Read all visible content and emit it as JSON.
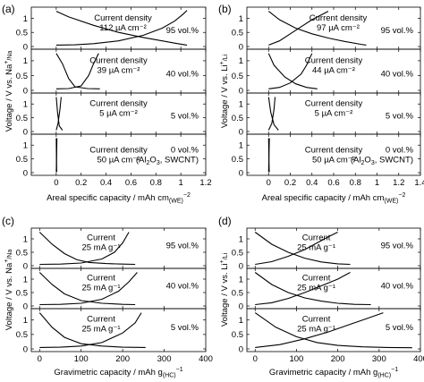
{
  "chart_data": [
    {
      "id": "a",
      "panel_label": "(a)",
      "type": "line",
      "ylabel_parts": [
        "Voltage / V vs. Na",
        "+",
        "/Na"
      ],
      "xlabel_parts": [
        "Areal specific capacity / mAh cm",
        "(WE)",
        "−2"
      ],
      "xlim": [
        -0.2,
        1.2
      ],
      "xticks": [
        0,
        0.2,
        0.4,
        0.6,
        0.8,
        1.0,
        1.2
      ],
      "xtick_labels": [
        "0",
        "0.2",
        "0.4",
        "0.6",
        "0.8",
        "1",
        "1.2"
      ],
      "ylim": [
        0,
        1.3
      ],
      "yticks": [
        0,
        0.5,
        1
      ],
      "ytick_labels": [
        "0",
        "0.5",
        "1"
      ],
      "subplots": [
        {
          "annotation": [
            "Current density",
            "112 µA cm⁻²"
          ],
          "label": "95 vol.%",
          "series": [
            {
              "name": "",
              "x": [
                0,
                0.1,
                0.3,
                0.5,
                0.7,
                0.85,
                0.95,
                1.02,
                1.05
              ],
              "y": [
                1.25,
                1.05,
                0.75,
                0.5,
                0.32,
                0.2,
                0.12,
                0.07,
                0.05
              ]
            },
            {
              "name": "",
              "x": [
                0,
                0.15,
                0.3,
                0.5,
                0.7,
                0.85,
                0.95,
                1.02,
                1.05
              ],
              "y": [
                0.05,
                0.06,
                0.1,
                0.2,
                0.4,
                0.65,
                0.9,
                1.15,
                1.28
              ]
            }
          ]
        },
        {
          "annotation": [
            "Current density",
            "39 µA cm⁻²"
          ],
          "label": "40 vol.%",
          "series": [
            {
              "name": "",
              "x": [
                0,
                0.05,
                0.1,
                0.15,
                0.25,
                0.35
              ],
              "y": [
                1.25,
                0.9,
                0.4,
                0.12,
                0.06,
                0.05
              ]
            },
            {
              "name": "",
              "x": [
                0,
                0.1,
                0.2,
                0.26,
                0.3,
                0.34
              ],
              "y": [
                0.05,
                0.06,
                0.15,
                0.5,
                0.9,
                1.25
              ]
            }
          ]
        },
        {
          "annotation": [
            "Current density",
            "5 µA cm⁻²"
          ],
          "label": "5 vol.%",
          "series": [
            {
              "name": "",
              "x": [
                0,
                0.01,
                0.025,
                0.05
              ],
              "y": [
                1.25,
                0.7,
                0.2,
                0.05
              ]
            },
            {
              "name": "",
              "x": [
                0,
                0.015,
                0.03,
                0.04
              ],
              "y": [
                0.05,
                0.3,
                0.8,
                1.25
              ]
            }
          ]
        },
        {
          "annotation": [
            "Current density",
            "50 µA cm⁻²"
          ],
          "label": "0 vol.%",
          "label_extra": [
            "(Al",
            "2",
            "O",
            "3",
            ", SWCNT)"
          ],
          "series": [
            {
              "name": "",
              "x": [
                0,
                0.002,
                0.004
              ],
              "y": [
                1.25,
                0.5,
                0.02
              ]
            },
            {
              "name": "",
              "x": [
                0,
                0.003,
                0.005
              ],
              "y": [
                0.02,
                0.6,
                1.25
              ]
            }
          ]
        }
      ]
    },
    {
      "id": "b",
      "panel_label": "(b)",
      "type": "line",
      "ylabel_parts": [
        "Voltage / V vs. Li",
        "+",
        "/Li"
      ],
      "xlabel_parts": [
        "Areal specific capacity / mAh cm",
        "(WE)",
        "−2"
      ],
      "xlim": [
        -0.2,
        1.4
      ],
      "xticks": [
        0,
        0.2,
        0.4,
        0.6,
        0.8,
        1.0,
        1.2,
        1.4
      ],
      "xtick_labels": [
        "0",
        "0.2",
        "0.4",
        "0.6",
        "0.8",
        "1",
        "1.2",
        "1.4"
      ],
      "ylim": [
        0,
        1.3
      ],
      "yticks": [
        0,
        0.5,
        1
      ],
      "ytick_labels": [
        "0",
        "0.5",
        "1"
      ],
      "subplots": [
        {
          "annotation": [
            "Current density",
            "97 µA cm⁻²"
          ],
          "label": "95 vol.%",
          "series": [
            {
              "name": "",
              "x": [
                0,
                0.1,
                0.25,
                0.4,
                0.55,
                0.7,
                0.85,
                0.9
              ],
              "y": [
                1.25,
                0.95,
                0.65,
                0.45,
                0.3,
                0.18,
                0.08,
                0.05
              ]
            },
            {
              "name": "",
              "x": [
                0,
                0.1,
                0.2,
                0.3,
                0.4,
                0.5,
                0.55
              ],
              "y": [
                0.05,
                0.2,
                0.45,
                0.7,
                0.95,
                1.15,
                1.25
              ]
            }
          ]
        },
        {
          "annotation": [
            "Current density",
            "44 µA cm⁻²"
          ],
          "label": "40 vol.%",
          "series": [
            {
              "name": "",
              "x": [
                0,
                0.05,
                0.15,
                0.25,
                0.35,
                0.45
              ],
              "y": [
                1.25,
                0.85,
                0.45,
                0.22,
                0.1,
                0.05
              ]
            },
            {
              "name": "",
              "x": [
                0,
                0.1,
                0.2,
                0.3,
                0.35,
                0.4
              ],
              "y": [
                0.05,
                0.1,
                0.25,
                0.55,
                0.85,
                1.25
              ]
            }
          ]
        },
        {
          "annotation": [
            "Current density",
            "5 µA cm⁻²"
          ],
          "label": "5 vol.%",
          "series": [
            {
              "name": "",
              "x": [
                0,
                0.02,
                0.05,
                0.09
              ],
              "y": [
                1.25,
                0.7,
                0.25,
                0.05
              ]
            },
            {
              "name": "",
              "x": [
                0,
                0.03,
                0.05,
                0.06
              ],
              "y": [
                0.05,
                0.3,
                0.8,
                1.25
              ]
            }
          ]
        },
        {
          "annotation": [
            "Current density",
            "50 µA cm⁻²"
          ],
          "label": "0 vol.%",
          "label_extra": [
            "(Al",
            "2",
            "O",
            "3",
            ", SWCNT)"
          ],
          "series": [
            {
              "name": "",
              "x": [
                0,
                0.003,
                0.006
              ],
              "y": [
                1.25,
                0.5,
                0.02
              ]
            },
            {
              "name": "",
              "x": [
                0,
                0.004,
                0.007
              ],
              "y": [
                0.02,
                0.6,
                1.25
              ]
            }
          ]
        }
      ]
    },
    {
      "id": "c",
      "panel_label": "(c)",
      "type": "line",
      "ylabel_parts": [
        "Voltage / V vs. Na",
        "+",
        "/Na"
      ],
      "xlabel_parts": [
        "Gravimetric capacity / mAh g",
        "(HC)",
        "−1"
      ],
      "xlim": [
        -20,
        400
      ],
      "xticks": [
        0,
        100,
        200,
        300,
        400
      ],
      "xtick_labels": [
        "0",
        "100",
        "200",
        "300",
        "400"
      ],
      "ylim": [
        0,
        1.3
      ],
      "yticks": [
        0,
        0.5,
        1
      ],
      "ytick_labels": [
        "0",
        "0.5",
        "1"
      ],
      "subplots": [
        {
          "annotation": [
            "Current",
            "25 mA g⁻¹"
          ],
          "label": "95 vol.%",
          "series": [
            {
              "name": "",
              "x": [
                0,
                30,
                60,
                90,
                120,
                160,
                200,
                230
              ],
              "y": [
                1.25,
                0.8,
                0.45,
                0.22,
                0.12,
                0.08,
                0.06,
                0.05
              ]
            },
            {
              "name": "",
              "x": [
                0,
                50,
                100,
                150,
                180,
                200,
                215
              ],
              "y": [
                0.05,
                0.06,
                0.1,
                0.25,
                0.5,
                0.85,
                1.25
              ]
            }
          ]
        },
        {
          "annotation": [
            "Current",
            "25 mA g⁻¹"
          ],
          "label": "40 vol.%",
          "series": [
            {
              "name": "",
              "x": [
                0,
                30,
                60,
                100,
                150,
                200,
                230
              ],
              "y": [
                1.25,
                0.8,
                0.45,
                0.2,
                0.1,
                0.06,
                0.05
              ]
            },
            {
              "name": "",
              "x": [
                0,
                50,
                100,
                150,
                190,
                215,
                235
              ],
              "y": [
                0.05,
                0.06,
                0.1,
                0.25,
                0.55,
                0.9,
                1.25
              ]
            }
          ]
        },
        {
          "annotation": [
            "Current",
            "25 mA g⁻¹"
          ],
          "label": "5 vol.%",
          "series": [
            {
              "name": "",
              "x": [
                0,
                30,
                60,
                100,
                150,
                200,
                255
              ],
              "y": [
                1.25,
                0.75,
                0.4,
                0.18,
                0.1,
                0.06,
                0.05
              ]
            },
            {
              "name": "",
              "x": [
                0,
                50,
                100,
                150,
                200,
                230,
                245
              ],
              "y": [
                0.05,
                0.06,
                0.1,
                0.22,
                0.55,
                0.9,
                1.25
              ]
            }
          ]
        }
      ]
    },
    {
      "id": "d",
      "panel_label": "(d)",
      "type": "line",
      "ylabel_parts": [
        "Voltage / V vs. Li",
        "+",
        "/Li"
      ],
      "xlabel_parts": [
        "Gravimetric capacity / mAh g",
        "(HC)",
        "−1"
      ],
      "xlim": [
        -20,
        400
      ],
      "xticks": [
        0,
        100,
        200,
        300,
        400
      ],
      "xtick_labels": [
        "0",
        "100",
        "200",
        "300",
        "400"
      ],
      "ylim": [
        0,
        1.3
      ],
      "yticks": [
        0,
        0.5,
        1
      ],
      "ytick_labels": [
        "0",
        "0.5",
        "1"
      ],
      "subplots": [
        {
          "annotation": [
            "Current",
            "25 mA g⁻¹"
          ],
          "label": "95 vol.%",
          "series": [
            {
              "name": "",
              "x": [
                0,
                40,
                80,
                120,
                160,
                200,
                230
              ],
              "y": [
                1.25,
                0.8,
                0.5,
                0.28,
                0.14,
                0.07,
                0.05
              ]
            },
            {
              "name": "",
              "x": [
                0,
                40,
                80,
                120,
                150,
                180,
                200
              ],
              "y": [
                0.05,
                0.15,
                0.35,
                0.6,
                0.85,
                1.1,
                1.25
              ]
            }
          ]
        },
        {
          "annotation": [
            "Current",
            "25 mA g⁻¹"
          ],
          "label": "40 vol.%",
          "series": [
            {
              "name": "",
              "x": [
                0,
                40,
                80,
                120,
                160,
                200,
                240,
                280
              ],
              "y": [
                1.25,
                0.8,
                0.5,
                0.3,
                0.18,
                0.1,
                0.06,
                0.05
              ]
            },
            {
              "name": "",
              "x": [
                0,
                40,
                80,
                120,
                160,
                200,
                230
              ],
              "y": [
                0.05,
                0.12,
                0.28,
                0.5,
                0.75,
                1.0,
                1.25
              ]
            }
          ]
        },
        {
          "annotation": [
            "Current",
            "25 mA g⁻¹"
          ],
          "label": "5 vol.%",
          "series": [
            {
              "name": "",
              "x": [
                0,
                50,
                100,
                150,
                200,
                260,
                320,
                380
              ],
              "y": [
                1.25,
                0.75,
                0.42,
                0.22,
                0.12,
                0.07,
                0.05,
                0.04
              ]
            },
            {
              "name": "",
              "x": [
                0,
                60,
                120,
                180,
                230,
                270,
                310
              ],
              "y": [
                0.05,
                0.15,
                0.35,
                0.6,
                0.85,
                1.05,
                1.25
              ]
            }
          ]
        }
      ]
    }
  ]
}
